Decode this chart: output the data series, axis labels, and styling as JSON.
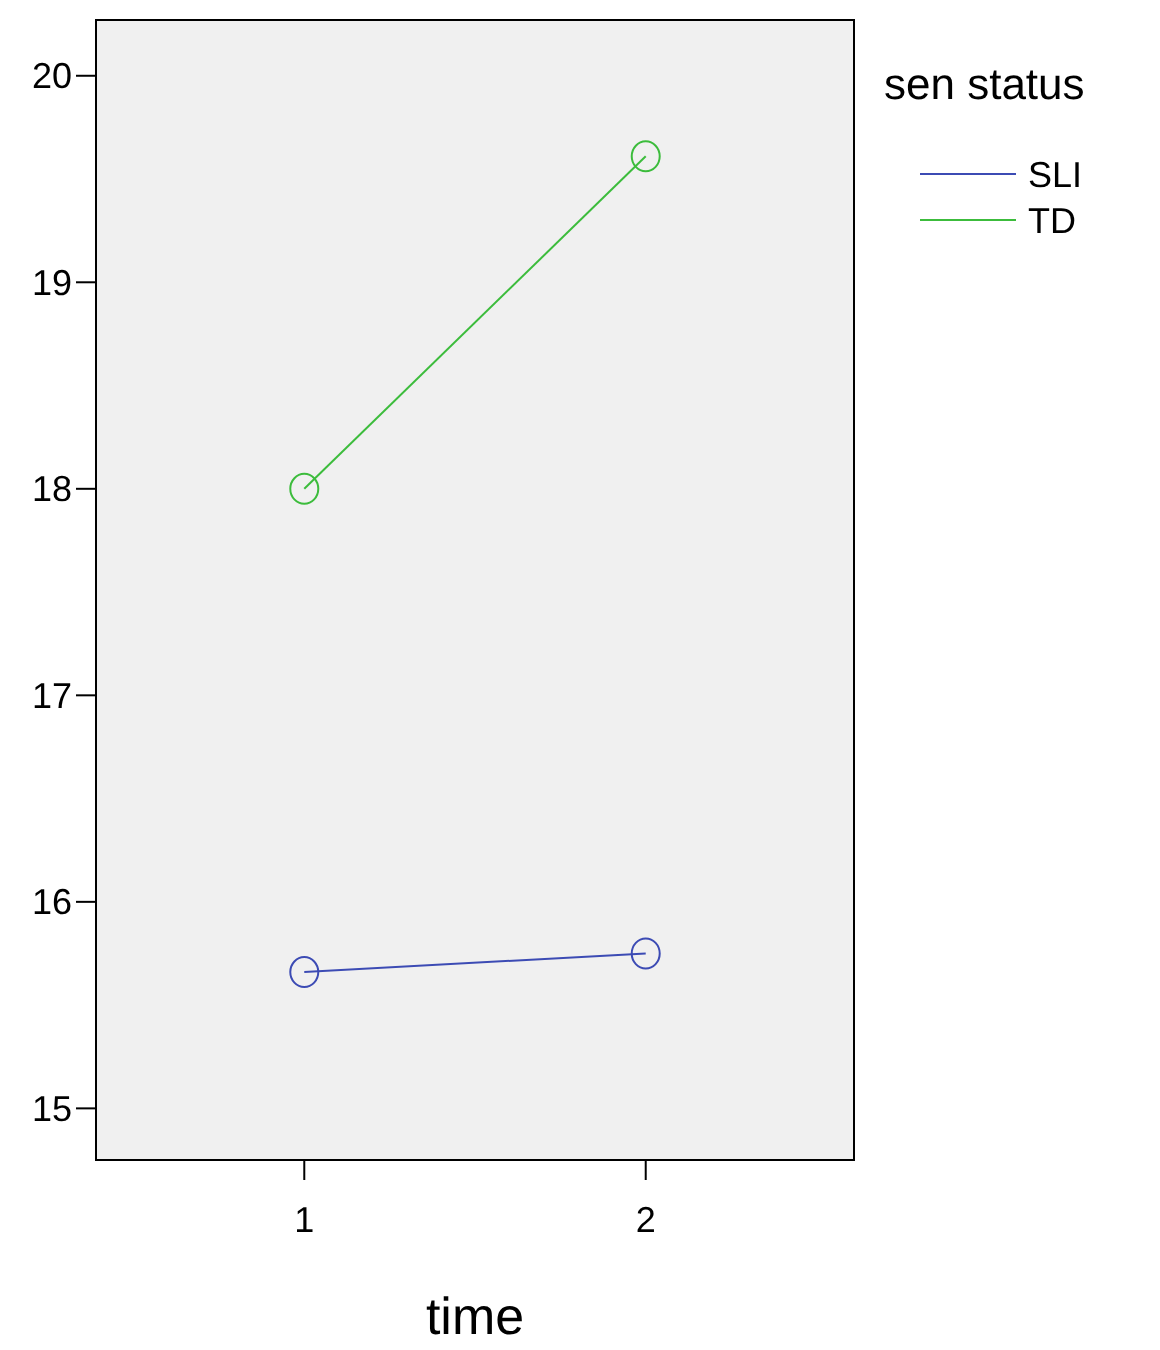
{
  "chart_data": {
    "type": "line",
    "xlabel": "time",
    "legend_title": "sen status",
    "categories": [
      "1",
      "2"
    ],
    "series": [
      {
        "name": "SLI",
        "color": "#3c4bb4",
        "values": [
          15.66,
          15.75
        ]
      },
      {
        "name": "TD",
        "color": "#3cbc3c",
        "values": [
          18.0,
          19.61
        ]
      }
    ],
    "ylim": [
      14.75,
      20.27
    ],
    "yticks": [
      15,
      16,
      17,
      18,
      19,
      20
    ],
    "marker": "circle",
    "line_style": "solid",
    "grid": false,
    "legend": "top right"
  }
}
